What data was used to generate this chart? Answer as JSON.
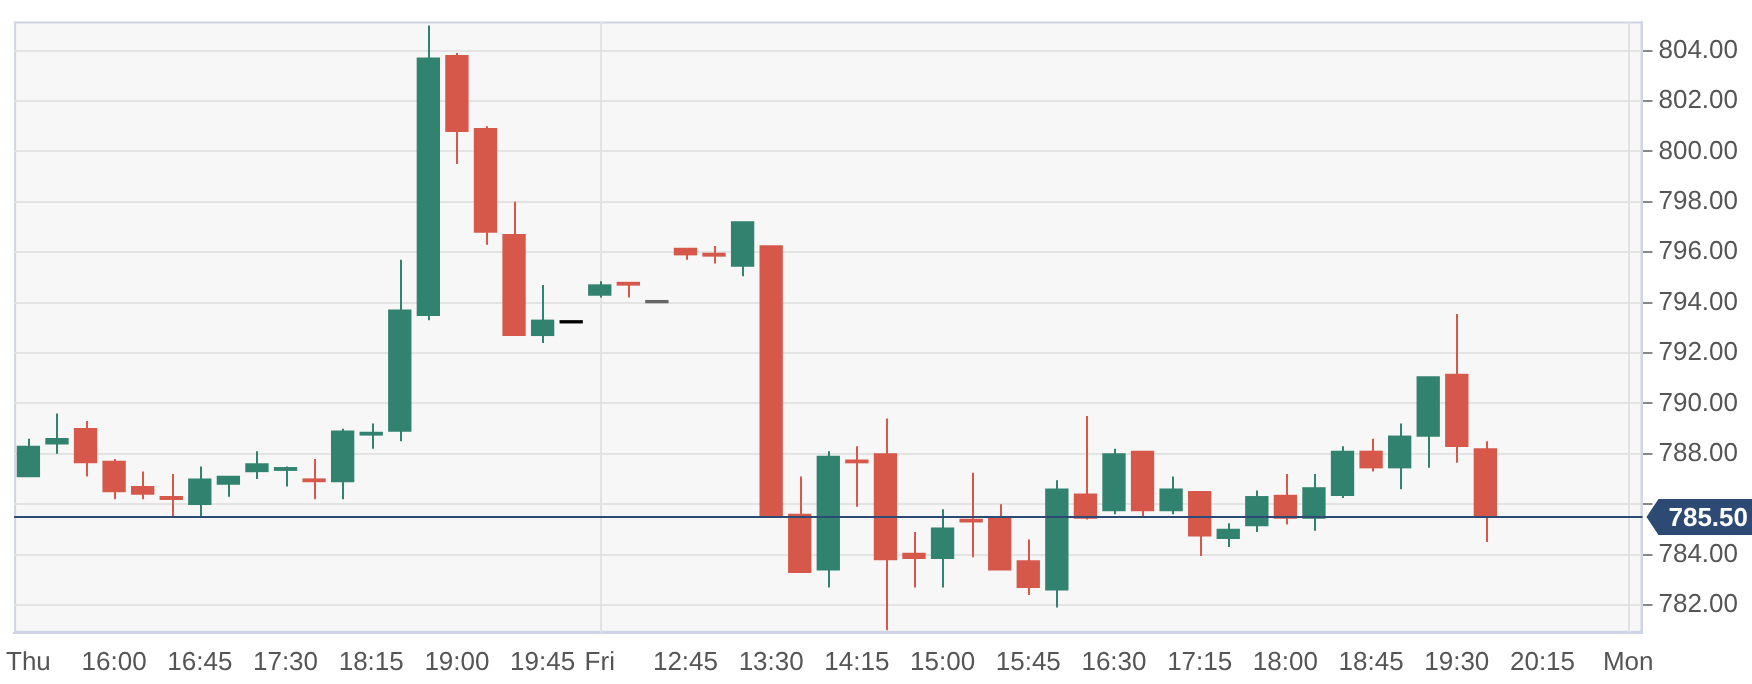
{
  "chart_data": {
    "type": "candlestick",
    "categories": [
      "Thu",
      null,
      null,
      "16:00",
      null,
      null,
      "16:45",
      null,
      null,
      "17:30",
      null,
      null,
      "18:15",
      null,
      null,
      "19:00",
      null,
      null,
      "19:45",
      null,
      "Fri",
      null,
      null,
      "12:45",
      null,
      null,
      "13:30",
      null,
      null,
      "14:15",
      null,
      null,
      "15:00",
      null,
      null,
      "15:45",
      null,
      null,
      "16:30",
      null,
      null,
      "17:15",
      null,
      null,
      "18:00",
      null,
      null,
      "18:45",
      null,
      null,
      "19:30",
      null,
      null,
      "20:15",
      null,
      null,
      "Mon"
    ],
    "ohlc": [
      [
        787.1,
        788.6,
        787.1,
        788.3
      ],
      [
        788.4,
        789.6,
        788.0,
        788.6
      ],
      [
        789.0,
        789.3,
        787.1,
        787.65
      ],
      [
        787.7,
        787.8,
        786.2,
        786.5
      ],
      [
        786.7,
        787.3,
        786.2,
        786.4
      ],
      [
        786.3,
        787.2,
        785.5,
        786.2
      ],
      [
        786.0,
        787.5,
        785.5,
        787.0
      ],
      [
        786.8,
        787.1,
        786.3,
        787.1
      ],
      [
        787.3,
        788.1,
        787.0,
        787.6
      ],
      [
        787.35,
        787.5,
        786.7,
        787.45
      ],
      [
        787.0,
        787.8,
        786.2,
        786.9
      ],
      [
        786.9,
        789.0,
        786.2,
        788.9
      ],
      [
        788.75,
        789.2,
        788.2,
        788.85
      ],
      [
        788.9,
        795.7,
        788.5,
        793.7
      ],
      [
        793.5,
        805.0,
        793.3,
        803.7
      ],
      [
        803.8,
        803.9,
        799.5,
        800.8
      ],
      [
        800.9,
        801.0,
        796.3,
        796.8
      ],
      [
        796.7,
        798.0,
        792.7,
        792.7
      ],
      [
        792.7,
        794.7,
        792.4,
        793.3
      ],
      [
        793.2,
        793.2,
        793.2,
        793.2
      ],
      [
        794.3,
        794.85,
        794.2,
        794.7
      ],
      [
        794.8,
        794.8,
        794.2,
        794.7
      ],
      [
        794.0,
        794.0,
        794.0,
        794.0
      ],
      [
        796.15,
        796.15,
        795.7,
        795.9
      ],
      [
        795.95,
        796.25,
        795.55,
        795.85
      ],
      [
        795.45,
        797.2,
        795.05,
        797.2
      ],
      [
        796.25,
        796.25,
        785.55,
        785.55
      ],
      [
        785.6,
        787.1,
        783.3,
        783.3
      ],
      [
        783.4,
        788.1,
        782.7,
        787.9
      ],
      [
        787.75,
        788.3,
        785.9,
        787.65
      ],
      [
        788.0,
        789.4,
        781.0,
        783.8
      ],
      [
        784.05,
        784.9,
        782.7,
        783.85
      ],
      [
        783.85,
        785.8,
        782.7,
        785.05
      ],
      [
        785.4,
        787.25,
        783.9,
        785.3
      ],
      [
        785.45,
        786.0,
        783.4,
        783.4
      ],
      [
        783.75,
        784.6,
        782.4,
        782.7
      ],
      [
        782.6,
        786.95,
        781.9,
        786.6
      ],
      [
        786.4,
        789.5,
        785.4,
        785.45
      ],
      [
        785.75,
        788.2,
        785.6,
        788.0
      ],
      [
        788.1,
        788.1,
        785.5,
        785.75
      ],
      [
        785.75,
        787.1,
        785.6,
        786.6
      ],
      [
        786.5,
        786.5,
        783.95,
        784.75
      ],
      [
        784.65,
        785.25,
        784.3,
        785.0
      ],
      [
        785.15,
        786.55,
        784.9,
        786.3
      ],
      [
        786.35,
        787.2,
        785.2,
        785.45
      ],
      [
        785.45,
        787.2,
        784.95,
        786.65
      ],
      [
        786.35,
        788.3,
        786.25,
        788.1
      ],
      [
        788.1,
        788.6,
        787.3,
        787.45
      ],
      [
        787.45,
        789.2,
        786.6,
        788.7
      ],
      [
        788.7,
        791.05,
        787.45,
        791.05
      ],
      [
        791.15,
        793.55,
        787.65,
        788.3
      ],
      [
        788.2,
        788.5,
        784.5,
        785.5
      ],
      null,
      null,
      null,
      null,
      null
    ],
    "colors": [
      "#31826e",
      "#31826e",
      "#d6584a",
      "#d6584a",
      "#d6584a",
      "#d6584a",
      "#31826e",
      "#31826e",
      "#31826e",
      "#31826e",
      "#d6584a",
      "#31826e",
      "#31826e",
      "#31826e",
      "#31826e",
      "#d6584a",
      "#d6584a",
      "#d6584a",
      "#31826e",
      "#000000",
      "#31826e",
      "#d6584a",
      "#666666",
      "#d6584a",
      "#d6584a",
      "#31826e",
      "#d6584a",
      "#d6584a",
      "#31826e",
      "#d6584a",
      "#d6584a",
      "#d6584a",
      "#31826e",
      "#d6584a",
      "#d6584a",
      "#d6584a",
      "#31826e",
      "#d6584a",
      "#31826e",
      "#d6584a",
      "#31826e",
      "#d6584a",
      "#31826e",
      "#31826e",
      "#d6584a",
      "#31826e",
      "#31826e",
      "#d6584a",
      "#31826e",
      "#31826e",
      "#d6584a",
      "#d6584a",
      "#31826e",
      "#31826e",
      "#31826e",
      "#31826e",
      "#31826e"
    ],
    "ylim": [
      780.9,
      805.15
    ],
    "yticks": [
      {
        "value": 782,
        "label": "782.00"
      },
      {
        "value": 784,
        "label": "784.00"
      },
      {
        "value": 786,
        "label": null
      },
      {
        "value": 788,
        "label": "788.00"
      },
      {
        "value": 790,
        "label": "790.00"
      },
      {
        "value": 792,
        "label": "792.00"
      },
      {
        "value": 794,
        "label": "794.00"
      },
      {
        "value": 796,
        "label": "796.00"
      },
      {
        "value": 798,
        "label": "798.00"
      },
      {
        "value": 800,
        "label": "800.00"
      },
      {
        "value": 802,
        "label": "802.00"
      },
      {
        "value": 804,
        "label": "804.00"
      }
    ],
    "grid": "y",
    "ref_lines": [
      {
        "axis": "y",
        "value": 785.5,
        "label": "785.50",
        "color": "#2c4a73"
      },
      {
        "axis": "x",
        "value": "Fri",
        "color": "#e2e2e2"
      },
      {
        "axis": "x",
        "value": "Mon",
        "color": "#e2e2e2"
      }
    ]
  }
}
